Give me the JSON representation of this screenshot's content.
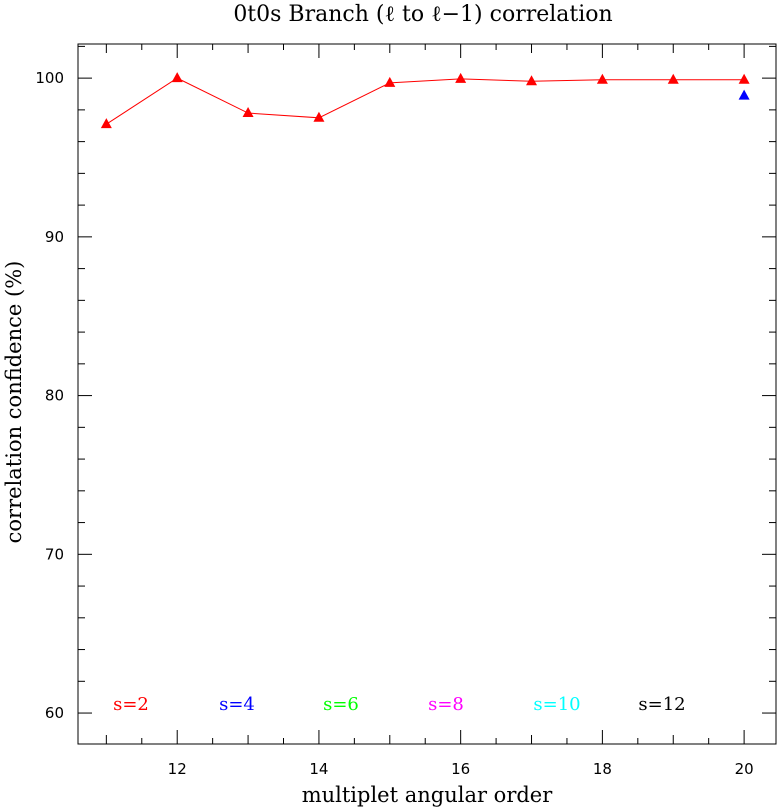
{
  "chart_data": {
    "type": "line",
    "title": "0t0s Branch (ℓ to ℓ−1) correlation",
    "xlabel": "multiplet angular order",
    "ylabel": "correlation confidence (%)",
    "xlim": [
      10.6,
      20.45
    ],
    "ylim": [
      58.05,
      102.15
    ],
    "x_major_ticks": [
      12,
      14,
      16,
      18,
      20
    ],
    "x_tick_labels": [
      "12",
      "14",
      "16",
      "18",
      "20"
    ],
    "y_major_ticks": [
      60,
      70,
      80,
      90,
      100
    ],
    "y_tick_labels": [
      "60",
      "70",
      "80",
      "90",
      "100"
    ],
    "grid": false,
    "series": [
      {
        "name": "s=2",
        "color": "#ff0000",
        "marker": "triangle",
        "line": true,
        "points": [
          {
            "x": 11,
            "y": 97.1
          },
          {
            "x": 12,
            "y": 100.0
          },
          {
            "x": 13,
            "y": 97.8
          },
          {
            "x": 14,
            "y": 97.5
          },
          {
            "x": 15,
            "y": 99.7
          },
          {
            "x": 16,
            "y": 99.95
          },
          {
            "x": 17,
            "y": 99.8
          },
          {
            "x": 18,
            "y": 99.9
          },
          {
            "x": 19,
            "y": 99.9
          },
          {
            "x": 20,
            "y": 99.9
          }
        ]
      },
      {
        "name": "s=4",
        "color": "#0000ff",
        "marker": "triangle",
        "line": false,
        "points": [
          {
            "x": 20,
            "y": 98.9
          }
        ]
      },
      {
        "name": "s=6",
        "color": "#00ff00",
        "marker": "triangle",
        "line": false,
        "points": []
      },
      {
        "name": "s=8",
        "color": "#ff00ff",
        "marker": "triangle",
        "line": false,
        "points": []
      },
      {
        "name": "s=10",
        "color": "#00ffff",
        "marker": "triangle",
        "line": false,
        "points": []
      },
      {
        "name": "s=12",
        "color": "#000000",
        "marker": "triangle",
        "line": false,
        "points": []
      }
    ],
    "legend": {
      "placement": "bottom-inside",
      "entries": [
        "s=2",
        "s=4",
        "s=6",
        "s=8",
        "s=10",
        "s=12"
      ]
    }
  }
}
